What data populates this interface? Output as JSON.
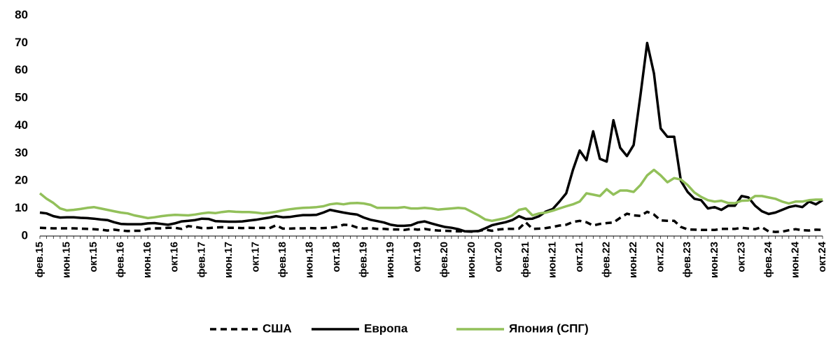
{
  "chart_data": {
    "type": "line",
    "categories": [
      "фев.15",
      null,
      null,
      null,
      "июн.15",
      null,
      null,
      null,
      "окт.15",
      null,
      null,
      null,
      "фев.16",
      null,
      null,
      null,
      "июн.16",
      null,
      null,
      null,
      "окт.16",
      null,
      null,
      null,
      "фев.17",
      null,
      null,
      null,
      "июн.17",
      null,
      null,
      null,
      "окт.17",
      null,
      null,
      null,
      "фев.18",
      null,
      null,
      null,
      "июн.18",
      null,
      null,
      null,
      "окт.18",
      null,
      null,
      null,
      "фев.19",
      null,
      null,
      null,
      "июн.19",
      null,
      null,
      null,
      "окт.19",
      null,
      null,
      null,
      "фев.20",
      null,
      null,
      null,
      "июн.20",
      null,
      null,
      null,
      "окт.20",
      null,
      null,
      null,
      "фев.21",
      null,
      null,
      null,
      "июн.21",
      null,
      null,
      null,
      "окт.21",
      null,
      null,
      null,
      "фев.22",
      null,
      null,
      null,
      "июн.22",
      null,
      null,
      null,
      "окт.22",
      null,
      null,
      null,
      "фев.23",
      null,
      null,
      null,
      "июн.23",
      null,
      null,
      null,
      "окт.23",
      null,
      null,
      null,
      "фев.24",
      null,
      null,
      null,
      "июн.24",
      null,
      null,
      null,
      "окт.24"
    ],
    "series": [
      {
        "name": "США",
        "color": "#000000",
        "dash": true,
        "values": [
          3,
          2.9,
          2.8,
          2.8,
          2.8,
          2.8,
          2.7,
          2.6,
          2.5,
          2.3,
          2.0,
          2.3,
          2.0,
          1.8,
          1.9,
          1.9,
          2.6,
          2.8,
          2.8,
          3.0,
          3.0,
          2.6,
          3.6,
          3.3,
          2.9,
          2.9,
          3.1,
          3.2,
          3.0,
          3.0,
          2.9,
          3.0,
          2.9,
          3.0,
          2.8,
          3.9,
          2.7,
          2.7,
          2.8,
          2.8,
          2.9,
          2.8,
          2.9,
          3.0,
          3.3,
          4.1,
          4.0,
          3.1,
          2.7,
          2.9,
          2.6,
          2.6,
          2.4,
          2.4,
          2.2,
          2.6,
          2.3,
          2.6,
          2.2,
          2.0,
          1.9,
          1.8,
          1.7,
          1.7,
          1.6,
          1.8,
          2.3,
          1.9,
          2.4,
          2.6,
          2.6,
          2.7,
          5.0,
          2.6,
          2.7,
          2.9,
          3.3,
          3.8,
          4.1,
          5.1,
          5.5,
          5.0,
          3.8,
          4.4,
          4.7,
          4.9,
          6.6,
          8.1,
          7.5,
          7.3,
          8.8,
          7.8,
          5.7,
          5.5,
          5.5,
          3.3,
          2.4,
          2.3,
          2.2,
          2.2,
          2.2,
          2.6,
          2.6,
          2.6,
          3.0,
          2.7,
          2.5,
          3.2,
          1.7,
          1.5,
          1.6,
          2.1,
          2.5,
          2.1,
          2.0,
          2.3,
          2.2
        ]
      },
      {
        "name": "Европа",
        "color": "#000000",
        "dash": false,
        "values": [
          8.5,
          8.2,
          7.2,
          6.7,
          6.8,
          6.8,
          6.6,
          6.5,
          6.3,
          6.0,
          5.8,
          5.0,
          4.4,
          4.3,
          4.3,
          4.3,
          4.6,
          4.7,
          4.4,
          4.1,
          4.6,
          5.3,
          5.5,
          5.8,
          6.3,
          6.2,
          5.4,
          5.3,
          5.2,
          5.2,
          5.3,
          5.6,
          5.9,
          6.3,
          6.7,
          7.2,
          6.8,
          6.9,
          7.3,
          7.6,
          7.6,
          7.7,
          8.5,
          9.5,
          9.0,
          8.5,
          8.1,
          7.8,
          6.7,
          5.9,
          5.4,
          4.9,
          4.1,
          3.7,
          3.7,
          3.9,
          4.9,
          5.3,
          4.6,
          3.9,
          3.3,
          3.0,
          2.5,
          1.7,
          1.7,
          1.8,
          2.8,
          3.9,
          4.5,
          5.0,
          5.8,
          7.2,
          6.2,
          6.3,
          7.2,
          8.9,
          9.8,
          12.5,
          15.5,
          24,
          31,
          27.5,
          38,
          28,
          27,
          42,
          32,
          29,
          33,
          51,
          70,
          59,
          39,
          36,
          36,
          20,
          16,
          13.5,
          13,
          10,
          10.5,
          9.5,
          11,
          11,
          14.5,
          14,
          11,
          9,
          8,
          8.5,
          9.5,
          10.5,
          11,
          10.5,
          12.5,
          11.5,
          13
        ]
      },
      {
        "name": "Япония (СПГ)",
        "color": "#92c05a",
        "dash": false,
        "values": [
          15.5,
          13.5,
          12,
          10,
          9.3,
          9.5,
          9.8,
          10.2,
          10.5,
          10,
          9.5,
          9,
          8.5,
          8.2,
          7.5,
          7,
          6.5,
          6.8,
          7.2,
          7.5,
          7.7,
          7.6,
          7.5,
          7.8,
          8.2,
          8.5,
          8.3,
          8.7,
          9.0,
          8.8,
          8.7,
          8.7,
          8.5,
          8.2,
          8.4,
          8.8,
          9.3,
          9.7,
          10,
          10.2,
          10.3,
          10.5,
          10.8,
          11.5,
          11.8,
          11.5,
          11.9,
          12,
          11.8,
          11.3,
          10.2,
          10.2,
          10.2,
          10.2,
          10.5,
          10,
          10,
          10.2,
          10,
          9.6,
          9.8,
          10,
          10.2,
          10,
          8.8,
          7.5,
          6,
          5.5,
          6,
          6.5,
          7.5,
          9.5,
          10,
          7.5,
          8.2,
          8.5,
          9.2,
          10,
          10.8,
          11.5,
          12.5,
          15.5,
          15,
          14.5,
          17,
          15,
          16.5,
          16.5,
          16,
          18.5,
          22,
          24,
          22,
          19.5,
          21,
          20.5,
          18.5,
          15.8,
          14.2,
          13,
          12.5,
          12.8,
          12,
          11.9,
          12.8,
          12.9,
          14.5,
          14.5,
          14,
          13.5,
          12.5,
          11.8,
          12.5,
          12.5,
          13,
          13.2,
          13.2
        ]
      }
    ],
    "ylim": [
      0,
      80
    ],
    "yticks": [
      0,
      10,
      20,
      30,
      40,
      50,
      60,
      70,
      80
    ],
    "grid": false,
    "legend": "bottom"
  }
}
